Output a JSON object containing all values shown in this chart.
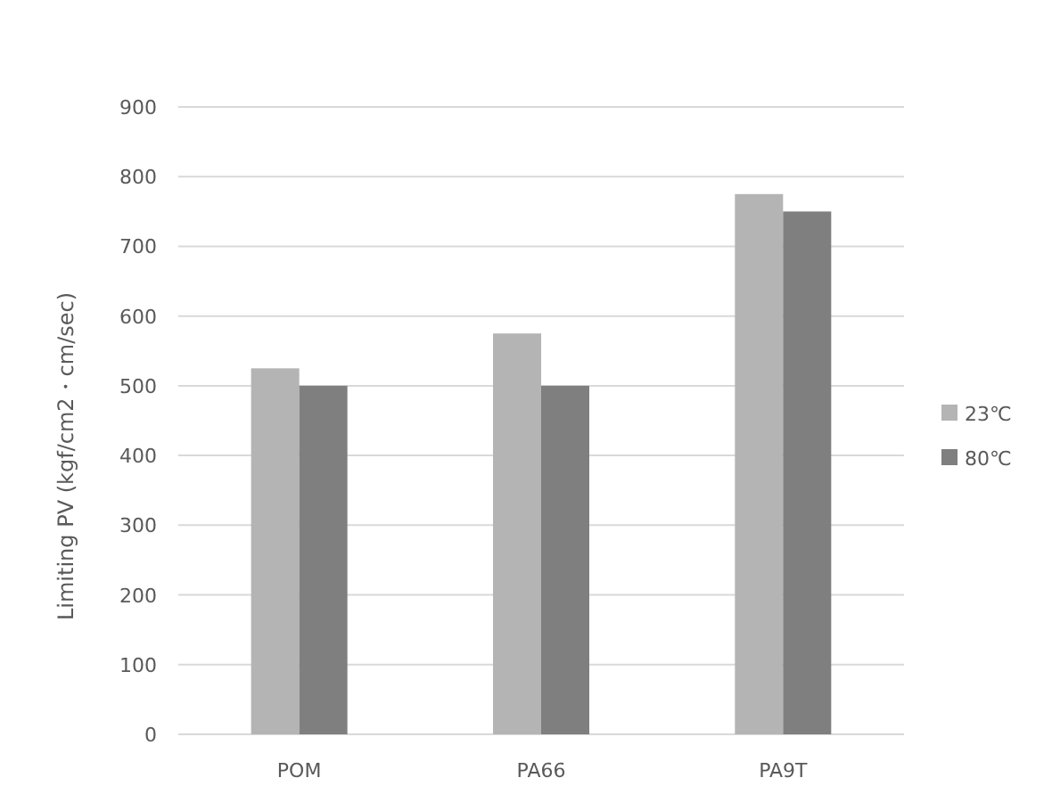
{
  "chart_data": {
    "type": "bar",
    "ylabel": "Limiting PV (kgf/cm2・cm/sec)",
    "categories": [
      "POM",
      "PA66",
      "PA9T"
    ],
    "series": [
      {
        "name": "23℃",
        "color": "#b4b4b4",
        "values": [
          525,
          575,
          775
        ]
      },
      {
        "name": "80℃",
        "color": "#7f7f7f",
        "values": [
          500,
          500,
          750
        ]
      }
    ],
    "ylim": [
      0,
      900
    ],
    "yticks": [
      0,
      100,
      200,
      300,
      400,
      500,
      600,
      700,
      800,
      900
    ],
    "grid": "y",
    "legend": "right"
  }
}
